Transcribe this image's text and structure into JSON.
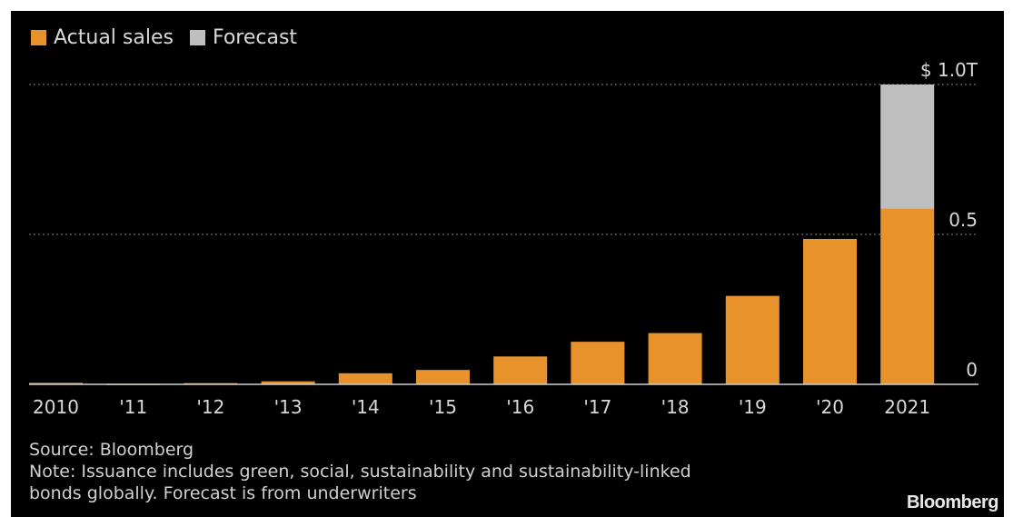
{
  "legend": {
    "actual_label": "Actual sales",
    "forecast_label": "Forecast"
  },
  "colors": {
    "actual": "#E8922B",
    "forecast": "#BFBFBF",
    "background": "#000000",
    "grid": "#8a8a8a",
    "text": "#d8d8d8"
  },
  "chart_data": {
    "type": "bar",
    "stacked": true,
    "categories": [
      "2010",
      "'11",
      "'12",
      "'13",
      "'14",
      "'15",
      "'16",
      "'17",
      "'18",
      "'19",
      "'20",
      "2021"
    ],
    "series": [
      {
        "name": "Actual sales",
        "values": [
          0.005,
          0.002,
          0.004,
          0.01,
          0.037,
          0.048,
          0.093,
          0.142,
          0.171,
          0.295,
          0.485,
          0.585
        ]
      },
      {
        "name": "Forecast",
        "values": [
          0,
          0,
          0,
          0,
          0,
          0,
          0,
          0,
          0,
          0,
          0,
          0.415
        ]
      }
    ],
    "ylim": [
      0,
      1.0
    ],
    "yticks": [
      0,
      0.5,
      1.0
    ],
    "ytick_labels": [
      "0",
      "0.5",
      "$ 1.0T"
    ],
    "grid": true,
    "legend_position": "top-left",
    "y_axis_side": "right"
  },
  "footer": {
    "source": "Source: Bloomberg",
    "note_line1": "Note: Issuance includes green, social, sustainability and sustainability-linked",
    "note_line2": "bonds globally. Forecast is from underwriters",
    "brand": "Bloomberg"
  }
}
